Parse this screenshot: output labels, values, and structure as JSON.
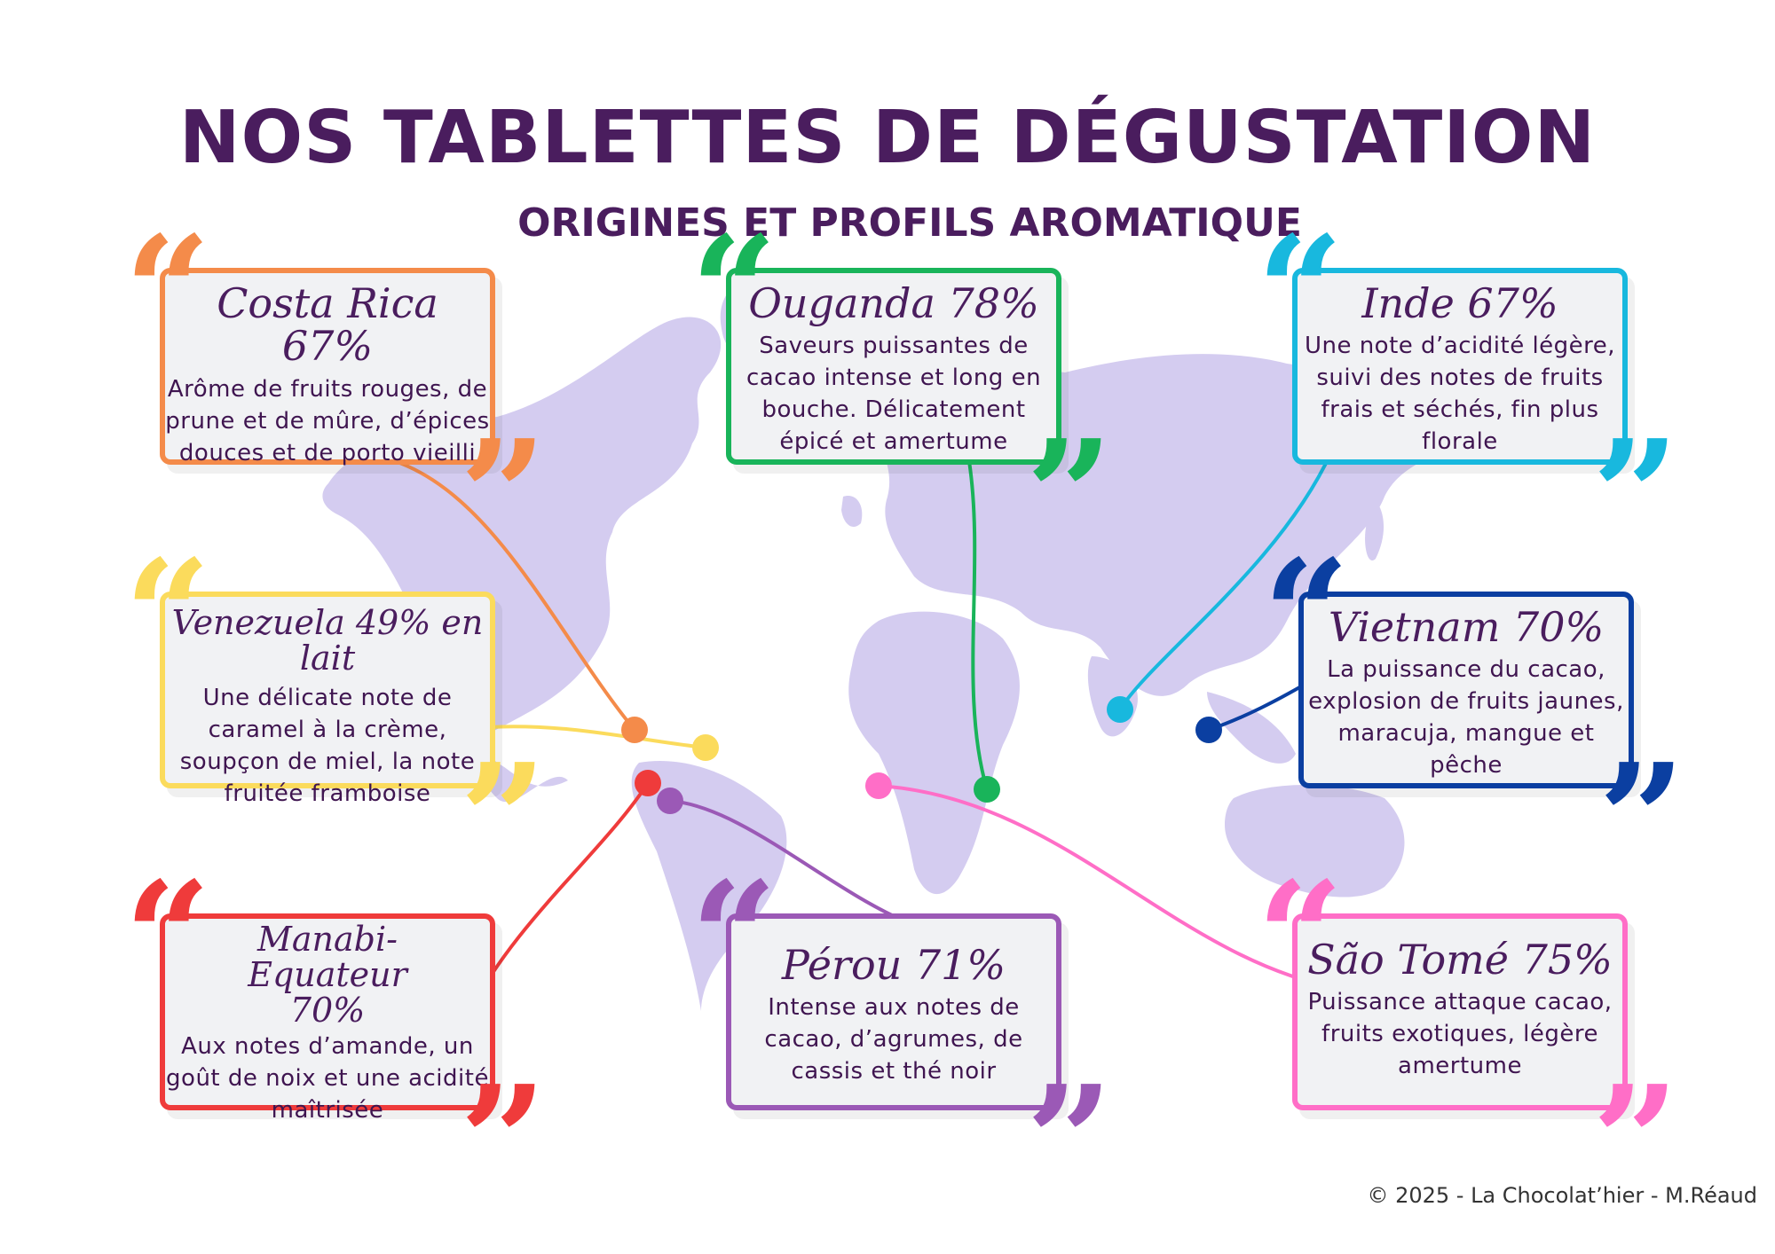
{
  "title": "NOS TABLETTES DE DÉGUSTATION",
  "subtitle": "ORIGINES ET PROFILS AROMATIQUE",
  "footer": "© 2025 - La Chocolat’hier - M.Réaud",
  "colors": {
    "land": "#d4ccf0",
    "title": "#4a1d5e",
    "card_bg": "#f1f2f4"
  },
  "origins": [
    {
      "name": "Costa Rica 67%",
      "description": "Arôme de fruits rouges, de prune et de mûre, d’épices douces et de porto vieilli",
      "color": "#f48b4a"
    },
    {
      "name": "Ouganda 78%",
      "description": "Saveurs puissantes de cacao intense et long en bouche. Délicatement épicé et amertume",
      "color": "#19b45a"
    },
    {
      "name": "Inde 67%",
      "description": "Une note d’acidité légère, suivi des notes de fruits frais et séchés, fin plus florale",
      "color": "#18b8de"
    },
    {
      "name": "Venezuela 49% en lait",
      "description": "Une délicate note de caramel à la crème, soupçon de miel, la note fruitée framboise",
      "color": "#fbdb5c"
    },
    {
      "name": "Vietnam 70%",
      "description": "La puissance du cacao, explosion de fruits jaunes, maracuja, mangue et pêche",
      "color": "#0b3fa1"
    },
    {
      "name": "Manabi-Equateur 70%",
      "description": "Aux notes d’amande, un goût de noix et une acidité maîtrisée",
      "color": "#ef3b3b"
    },
    {
      "name": "Pérou 71%",
      "description": "Intense aux notes de cacao, d’agrumes, de cassis et thé noir",
      "color": "#9b59b6"
    },
    {
      "name": "São Tomé 75%",
      "description": "Puissance attaque cacao, fruits exotiques, légère amertume",
      "color": "#ff6ec7"
    }
  ]
}
